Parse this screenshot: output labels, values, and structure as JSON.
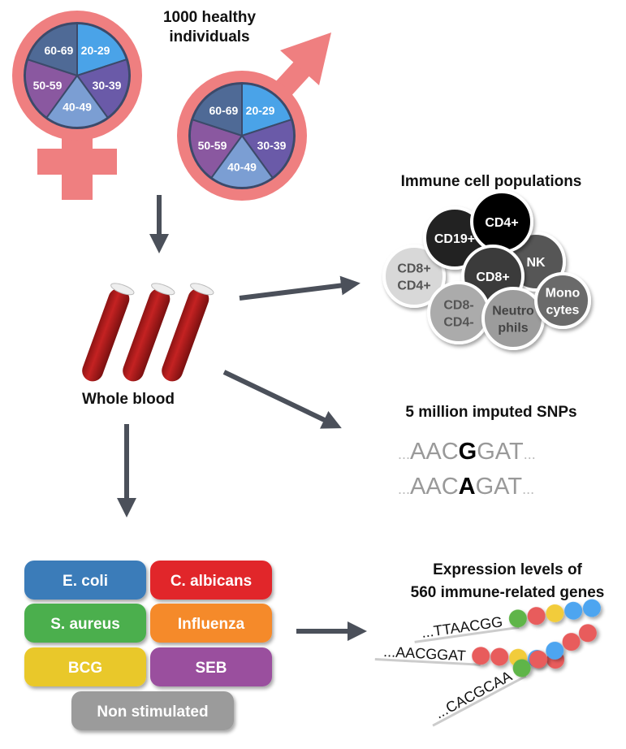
{
  "title": "1000 healthy individuals",
  "title_lines": [
    "1000 healthy",
    "individuals"
  ],
  "age_groups": [
    {
      "label": "20-29",
      "color": "#4aa3e8"
    },
    {
      "label": "30-39",
      "color": "#6a5aa8"
    },
    {
      "label": "40-49",
      "color": "#7b9ed3"
    },
    {
      "label": "50-59",
      "color": "#8a58a0"
    },
    {
      "label": "60-69",
      "color": "#4f6a96"
    }
  ],
  "sex_symbol_color": "#ef7f80",
  "arrow_color": "#4b505a",
  "whole_blood": "Whole blood",
  "immune_cells": {
    "title": "Immune cell populations",
    "cells": [
      {
        "label": [
          "CD8+",
          "CD4+"
        ],
        "color": "#d8d8d8",
        "text": "#555"
      },
      {
        "label": [
          "NK"
        ],
        "color": "#565656",
        "text": "#fff"
      },
      {
        "label": [
          "CD19+"
        ],
        "color": "#222222",
        "text": "#fff"
      },
      {
        "label": [
          "CD4+"
        ],
        "color": "#000000",
        "text": "#fff"
      },
      {
        "label": [
          "CD8+"
        ],
        "color": "#3a3a3a",
        "text": "#fff"
      },
      {
        "label": [
          "CD8-",
          "CD4-"
        ],
        "color": "#ababab",
        "text": "#555"
      },
      {
        "label": [
          "Neutro",
          "phils"
        ],
        "color": "#9c9c9c",
        "text": "#444"
      },
      {
        "label": [
          "Mono",
          "cytes"
        ],
        "color": "#6a6a6a",
        "text": "#fff"
      }
    ]
  },
  "snps": {
    "title": "5 million imputed SNPs",
    "rows": [
      {
        "prefix": "...",
        "left": "AAC",
        "allele": "G",
        "right": "GAT",
        "suffix": "..."
      },
      {
        "prefix": "...",
        "left": "AAC",
        "allele": "A",
        "right": "GAT",
        "suffix": "..."
      }
    ]
  },
  "stimuli": [
    {
      "label": "E. coli",
      "color": "#3b7bb9"
    },
    {
      "label": "C. albicans",
      "color": "#e1272b"
    },
    {
      "label": "S. aureus",
      "color": "#4caf4d"
    },
    {
      "label": "Influenza",
      "color": "#f58a2b"
    },
    {
      "label": "BCG",
      "color": "#e9c82a"
    },
    {
      "label": "SEB",
      "color": "#9a4f9e"
    },
    {
      "label": "Non stimulated",
      "color": "#9b9b9b"
    }
  ],
  "expression": {
    "title_lines": [
      "Expression levels of",
      "560 immune-related genes"
    ],
    "sequences": [
      {
        "text": "...TTAACGG",
        "beads": [
          "#5fb548",
          "#e85c5c",
          "#f2cc3a",
          "#4ea5f0",
          "#4ea5f0"
        ]
      },
      {
        "text": "...AACGGAT",
        "beads": [
          "#e85c5c",
          "#e85c5c",
          "#f2cc3a",
          "#4ea5f0",
          "#e85c5c"
        ]
      },
      {
        "text": "...CACGCAA",
        "beads": [
          "#5fb548",
          "#e85c5c",
          "#4ea5f0",
          "#e85c5c",
          "#e85c5c"
        ]
      }
    ]
  }
}
